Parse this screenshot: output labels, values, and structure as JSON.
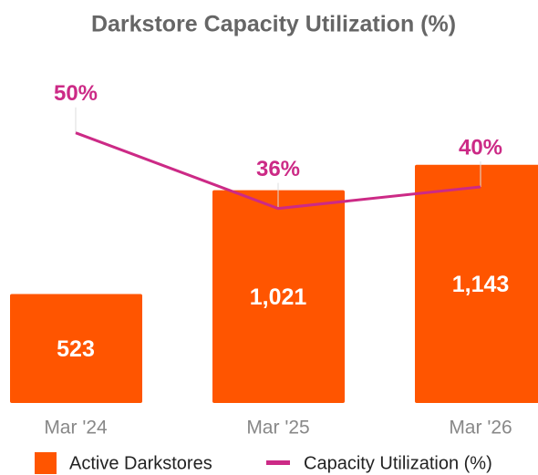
{
  "chart_data": {
    "type": "bar_line",
    "title": "Darkstore Capacity Utilization (%)",
    "categories": [
      "Mar '24",
      "Mar '25",
      "Mar '26"
    ],
    "series": [
      {
        "name": "Active Darkstores",
        "type": "bar",
        "color": "#ff5500",
        "values": [
          523,
          1021,
          1143
        ],
        "value_labels": [
          "523",
          "1,021",
          "1,143"
        ]
      },
      {
        "name": "Capacity Utilization (%)",
        "type": "line",
        "axis": "y2",
        "color": "#cc2a86",
        "values": [
          50,
          36,
          40
        ],
        "value_labels": [
          "50%",
          "36%",
          "40%"
        ]
      }
    ],
    "ylim": [
      0,
      1400
    ],
    "y2lim": [
      0,
      54
    ],
    "grid": false,
    "legend": "bottom"
  }
}
